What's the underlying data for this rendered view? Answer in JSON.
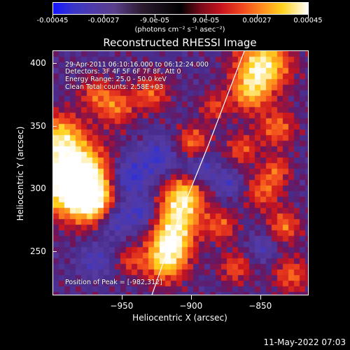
{
  "colorbar": {
    "tick_labels": [
      "-0.00045",
      "-0.00027",
      "-9.0e-05",
      "9.0e-05",
      "0.00027",
      "0.00045"
    ],
    "units": "(photons cm⁻² s⁻¹ asec⁻²)",
    "range": [
      -0.00045,
      0.00045
    ]
  },
  "chart_data": {
    "type": "heatmap",
    "title": "Reconstructed RHESSI Image",
    "xlabel": "Heliocentric X (arcsec)",
    "ylabel": "Heliocentric Y (arcsec)",
    "xlim": [
      -1000,
      -815
    ],
    "ylim": [
      215,
      410
    ],
    "x_ticks": [
      -950,
      -900,
      -850
    ],
    "x_tick_labels": [
      "−950",
      "−900",
      "−850"
    ],
    "y_ticks": [
      250,
      300,
      350,
      400
    ],
    "y_tick_labels": [
      "250",
      "300",
      "350",
      "400"
    ],
    "limb": [
      [
        -929,
        215
      ],
      [
        -910,
        275
      ],
      [
        -888,
        335
      ],
      [
        -862,
        410
      ]
    ],
    "peak": [
      -982,
      312
    ],
    "info_lines": [
      "29-Apr-2011 06:10:16.000 to 06:12:24.000",
      "Detectors: 3F 4F 5F 6F 7F 8F, Att 0",
      "Energy Range: 25.0 - 50.0 keV",
      "Clean    Total counts: 2.58E+03"
    ],
    "peak_text": "Position of Peak = [-982,312]"
  },
  "footer": {
    "timestamp": "11-May-2022 07:03"
  }
}
